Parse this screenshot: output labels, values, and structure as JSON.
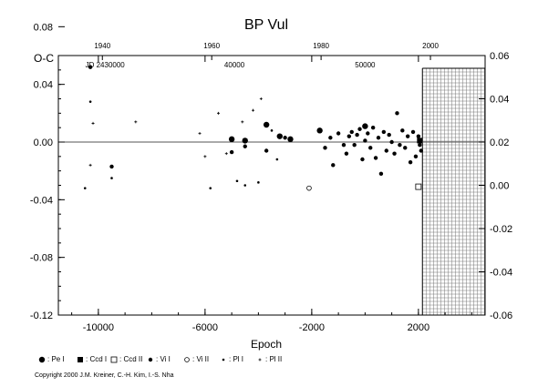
{
  "chart_data": {
    "type": "scatter",
    "title": "BP Vul",
    "ylabel": "O-C",
    "xlabel": "Epoch",
    "xlim": [
      -11500,
      4500
    ],
    "ylim": [
      -0.12,
      0.06
    ],
    "x_ticks": [
      -10000,
      -6000,
      -2000,
      2000
    ],
    "x_tick_labels": [
      "-10000",
      "-6000",
      "-2000",
      "2000"
    ],
    "y_ticks": [
      -0.12,
      -0.08,
      -0.04,
      0.0,
      0.04,
      0.08
    ],
    "y_tick_labels": [
      "-0.12",
      "-0.08",
      "-0.04",
      "0.00",
      "0.04",
      "0.08"
    ],
    "right_ylim": [
      -0.06,
      0.06
    ],
    "right_y_ticks": [
      -0.06,
      -0.04,
      -0.02,
      0.0,
      0.02,
      0.04,
      0.06
    ],
    "right_y_tick_labels": [
      "-0.06",
      "-0.04",
      "-0.02",
      "0.00",
      "0.02",
      "0.04",
      "0.06"
    ],
    "top_year_ticks": [
      {
        "epoch": -9850,
        "label": "1940"
      },
      {
        "epoch": -5750,
        "label": "1960"
      },
      {
        "epoch": -1650,
        "label": "1980"
      },
      {
        "epoch": 2450,
        "label": "2000"
      }
    ],
    "jd_labels": [
      {
        "epoch": -9750,
        "label": "JD 2430000"
      },
      {
        "epoch": -4900,
        "label": "40000"
      },
      {
        "epoch": 0,
        "label": "50000"
      }
    ],
    "hatched_region_start": 2150,
    "series": [
      {
        "name": ": Pe I",
        "marker": "dot-large",
        "points": [
          [
            -5000,
            0.002
          ],
          [
            -4500,
            0.001
          ],
          [
            -3700,
            0.012
          ],
          [
            -3200,
            0.004
          ],
          [
            -2800,
            0.002
          ],
          [
            -1700,
            0.008
          ],
          [
            0,
            0.011
          ]
        ]
      },
      {
        "name": ": Ccd I",
        "marker": "square-filled",
        "points": [
          [
            2050,
            0.001
          ]
        ]
      },
      {
        "name": ": Ccd II",
        "marker": "square-open",
        "points": [
          [
            2000,
            -0.031
          ]
        ]
      },
      {
        "name": ": Vi I",
        "marker": "dot-medium",
        "points": [
          [
            -10300,
            0.052
          ],
          [
            -9500,
            -0.017
          ],
          [
            -5000,
            -0.007
          ],
          [
            -4500,
            -0.003
          ],
          [
            -3700,
            -0.006
          ],
          [
            -3000,
            0.003
          ],
          [
            -1500,
            -0.004
          ],
          [
            -1300,
            0.003
          ],
          [
            -1200,
            -0.016
          ],
          [
            -1000,
            0.006
          ],
          [
            -800,
            -0.002
          ],
          [
            -700,
            -0.008
          ],
          [
            -600,
            0.004
          ],
          [
            -500,
            0.007
          ],
          [
            -400,
            -0.002
          ],
          [
            -300,
            0.005
          ],
          [
            -200,
            0.009
          ],
          [
            -100,
            -0.012
          ],
          [
            0,
            0.001
          ],
          [
            100,
            0.006
          ],
          [
            200,
            -0.004
          ],
          [
            300,
            0.01
          ],
          [
            400,
            -0.011
          ],
          [
            500,
            0.003
          ],
          [
            600,
            -0.022
          ],
          [
            700,
            0.007
          ],
          [
            800,
            -0.006
          ],
          [
            900,
            0.005
          ],
          [
            1000,
            0.0
          ],
          [
            1100,
            -0.008
          ],
          [
            1200,
            0.02
          ],
          [
            1300,
            -0.002
          ],
          [
            1400,
            0.008
          ],
          [
            1500,
            -0.004
          ],
          [
            1600,
            0.004
          ],
          [
            1700,
            -0.014
          ],
          [
            1800,
            0.007
          ],
          [
            1900,
            -0.01
          ],
          [
            2000,
            0.004
          ],
          [
            2050,
            -0.002
          ],
          [
            2100,
            -0.006
          ]
        ]
      },
      {
        "name": ": Vi II",
        "marker": "circle-open",
        "points": [
          [
            -2100,
            -0.032
          ]
        ]
      },
      {
        "name": ": Pl I",
        "marker": "dot-small",
        "points": [
          [
            -10500,
            -0.032
          ],
          [
            -10300,
            0.028
          ],
          [
            -9500,
            -0.025
          ],
          [
            -5800,
            -0.032
          ],
          [
            -4800,
            -0.027
          ],
          [
            -4500,
            -0.03
          ],
          [
            -4000,
            -0.028
          ],
          [
            -3500,
            0.008
          ],
          [
            -3300,
            -0.012
          ]
        ]
      },
      {
        "name": ": Pl II",
        "marker": "plus-small",
        "points": [
          [
            -10300,
            -0.016
          ],
          [
            -10200,
            0.013
          ],
          [
            -8600,
            0.014
          ],
          [
            -6000,
            -0.01
          ],
          [
            -6200,
            0.006
          ],
          [
            -5500,
            0.02
          ],
          [
            -5200,
            -0.008
          ],
          [
            -4600,
            0.014
          ],
          [
            -4200,
            0.022
          ],
          [
            -3900,
            0.03
          ]
        ]
      }
    ],
    "legend_placement": "bottom"
  },
  "copyright": "Copyright 2000 J.M. Kreiner, C.-H. Kim, I.-S. Nha"
}
